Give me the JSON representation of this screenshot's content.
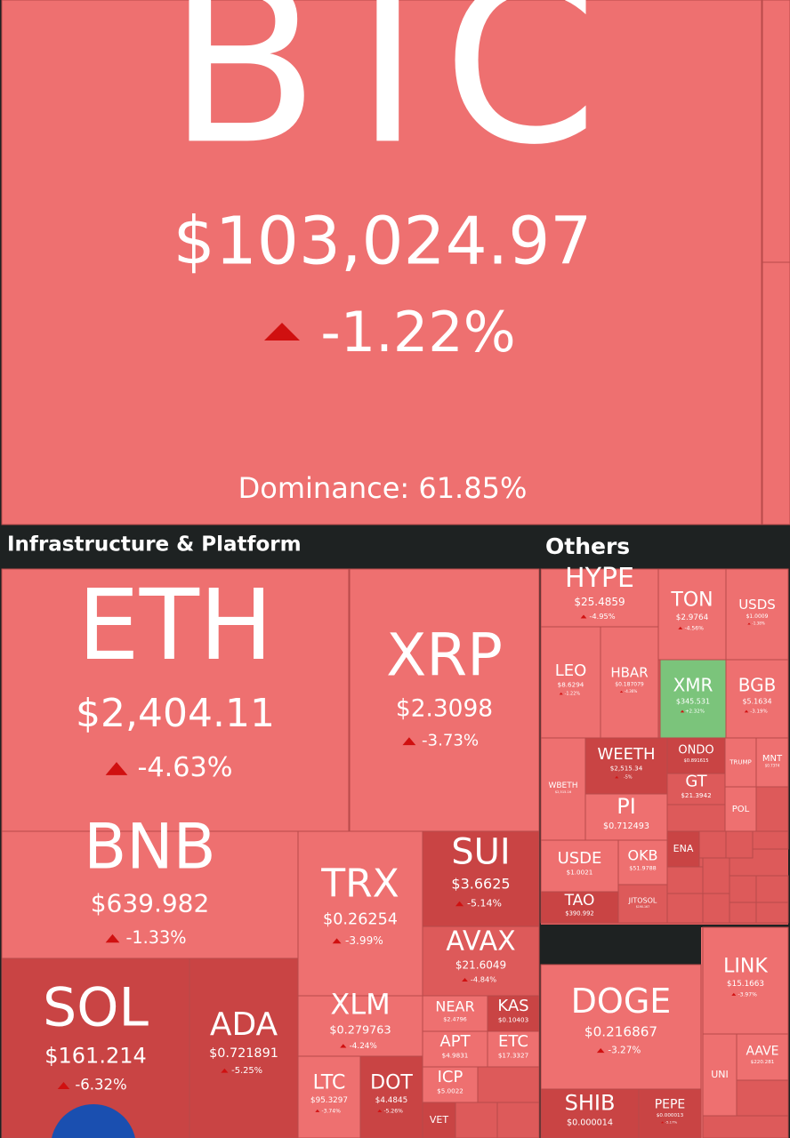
{
  "btc": {
    "symbol": "BTC",
    "price": "$103,024.97",
    "change": "-1.22%",
    "dominance": "Dominance: 61.85%"
  },
  "sections": [
    "Infrastructure & Platform",
    "Others"
  ],
  "tiles": [
    {
      "symbol": "ETH",
      "price": "$2,404.11",
      "change": "-4.63%",
      "color": "#ee7070"
    },
    {
      "symbol": "XRP",
      "price": "$2.3098",
      "change": "-3.73%",
      "color": "#ee7070"
    },
    {
      "symbol": "BNB",
      "price": "$639.982",
      "change": "-1.33%",
      "color": "#ee7070"
    },
    {
      "symbol": "TRX",
      "price": "$0.26254",
      "change": "-3.99%",
      "color": "#ee7070"
    },
    {
      "symbol": "SUI",
      "price": "$3.6625",
      "change": "-5.14%",
      "color": "#c94444"
    },
    {
      "symbol": "AVAX",
      "price": "$21.6049",
      "change": "-4.84%",
      "color": "#dd5a5a"
    },
    {
      "symbol": "SOL",
      "price": "$161.214",
      "change": "-6.32%",
      "color": "#c94444"
    },
    {
      "symbol": "ADA",
      "price": "$0.721891",
      "change": "-5.25%",
      "color": "#c94444"
    },
    {
      "symbol": "XLM",
      "price": "$0.279763",
      "change": "-4.24%",
      "color": "#ee7070"
    },
    {
      "symbol": "NEAR",
      "price": "$2.4796",
      "change": "",
      "color": "#ee7070"
    },
    {
      "symbol": "KAS",
      "price": "$0.10403",
      "change": "",
      "color": "#c94444"
    },
    {
      "symbol": "APT",
      "price": "$4.9831",
      "change": "",
      "color": "#ee7070"
    },
    {
      "symbol": "ETC",
      "price": "$17.3327",
      "change": "",
      "color": "#ee7070"
    },
    {
      "symbol": "LTC",
      "price": "$95.3297",
      "change": "-3.74%",
      "color": "#ee7070"
    },
    {
      "symbol": "DOT",
      "price": "$4.4845",
      "change": "-5.26%",
      "color": "#c94444"
    },
    {
      "symbol": "ICP",
      "price": "$5.0022",
      "change": "",
      "color": "#ee7070"
    },
    {
      "symbol": "VET",
      "price": "",
      "change": "",
      "color": "#c94444"
    },
    {
      "symbol": "HYPE",
      "price": "$25.4859",
      "change": "-4.95%",
      "color": "#ee7070"
    },
    {
      "symbol": "TON",
      "price": "$2.9764",
      "change": "-4.56%",
      "color": "#ee7070"
    },
    {
      "symbol": "USDS",
      "price": "$1.0009",
      "change": "-1.38%",
      "color": "#ee7070"
    },
    {
      "symbol": "LEO",
      "price": "$8.6294",
      "change": "-1.22%",
      "color": "#ee7070"
    },
    {
      "symbol": "HBAR",
      "price": "$0.187079",
      "change": "-4.36%",
      "color": "#ee7070"
    },
    {
      "symbol": "XMR",
      "price": "$345.531",
      "change": "+2.32%",
      "color": "#7bc47b"
    },
    {
      "symbol": "BGB",
      "price": "$5.1634",
      "change": "-3.19%",
      "color": "#ee7070"
    },
    {
      "symbol": "WBETH",
      "price": "$2,515.16",
      "change": "",
      "color": "#ee7070"
    },
    {
      "symbol": "WEETH",
      "price": "$2,515.34",
      "change": "-5%",
      "color": "#c94444"
    },
    {
      "symbol": "ONDO",
      "price": "$0.891615",
      "change": "",
      "color": "#c94444"
    },
    {
      "symbol": "TRUMP",
      "price": "",
      "change": "",
      "color": "#ee7070"
    },
    {
      "symbol": "MNT",
      "price": "$0.7374",
      "change": "",
      "color": "#ee7070"
    },
    {
      "symbol": "GT",
      "price": "$21.3942",
      "change": "",
      "color": "#dd5a5a"
    },
    {
      "symbol": "PI",
      "price": "$0.712493",
      "change": "",
      "color": "#ee7070"
    },
    {
      "symbol": "POL",
      "price": "",
      "change": "",
      "color": "#ee7070"
    },
    {
      "symbol": "ENA",
      "price": "",
      "change": "",
      "color": "#c94444"
    },
    {
      "symbol": "USDE",
      "price": "$1.0021",
      "change": "",
      "color": "#ee7070"
    },
    {
      "symbol": "OKB",
      "price": "$51.9788",
      "change": "",
      "color": "#ee7070"
    },
    {
      "symbol": "TAO",
      "price": "$390.992",
      "change": "",
      "color": "#c94444"
    },
    {
      "symbol": "JITOSOL",
      "price": "$190.167",
      "change": "",
      "color": "#dd5a5a"
    },
    {
      "symbol": "DOGE",
      "price": "$0.216867",
      "change": "-3.27%",
      "color": "#ee7070"
    },
    {
      "symbol": "SHIB",
      "price": "$0.000014",
      "change": "",
      "color": "#c94444"
    },
    {
      "symbol": "PEPE",
      "price": "$0.000013",
      "change": "-5.17%",
      "color": "#c94444"
    },
    {
      "symbol": "LINK",
      "price": "$15.1663",
      "change": "-3.97%",
      "color": "#ee7070"
    },
    {
      "symbol": "UNI",
      "price": "",
      "change": "",
      "color": "#ee7070"
    },
    {
      "symbol": "AAVE",
      "price": "$220.281",
      "change": "",
      "color": "#ee7070"
    }
  ]
}
